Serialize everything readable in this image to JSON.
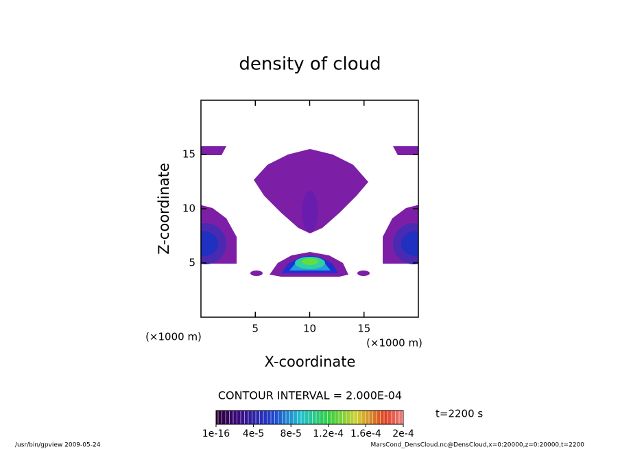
{
  "chart_data": {
    "type": "contour",
    "title": "density of cloud",
    "x_label": "X-coordinate",
    "y_label": "Z-coordinate",
    "x_unit": "(×1000 m)",
    "y_unit": "(×1000 m)",
    "xlim": [
      0,
      20
    ],
    "ylim": [
      0,
      20
    ],
    "xticks": [
      5,
      10,
      15
    ],
    "yticks": [
      5,
      10,
      15
    ],
    "contour_interval": "CONTOUR INTERVAL = 2.000E-04",
    "time_label": "t=2200 s",
    "colorbar": {
      "lim": [
        1e-16,
        0.0002
      ],
      "ticks": [
        {
          "value": 1e-16,
          "label": "1e-16"
        },
        {
          "value": 4e-05,
          "label": "4e-5"
        },
        {
          "value": 8e-05,
          "label": "8e-5"
        },
        {
          "value": 0.00012,
          "label": "1.2e-4"
        },
        {
          "value": 0.00016,
          "label": "1.6e-4"
        },
        {
          "value": 0.0002,
          "label": "2e-4"
        }
      ]
    },
    "footer_left": "/usr/bin/gpview  2009-05-24",
    "footer_right": "MarsCond_DensCloud.nc@DensCloud,x=0:20000,z=0:20000,t=2200"
  }
}
